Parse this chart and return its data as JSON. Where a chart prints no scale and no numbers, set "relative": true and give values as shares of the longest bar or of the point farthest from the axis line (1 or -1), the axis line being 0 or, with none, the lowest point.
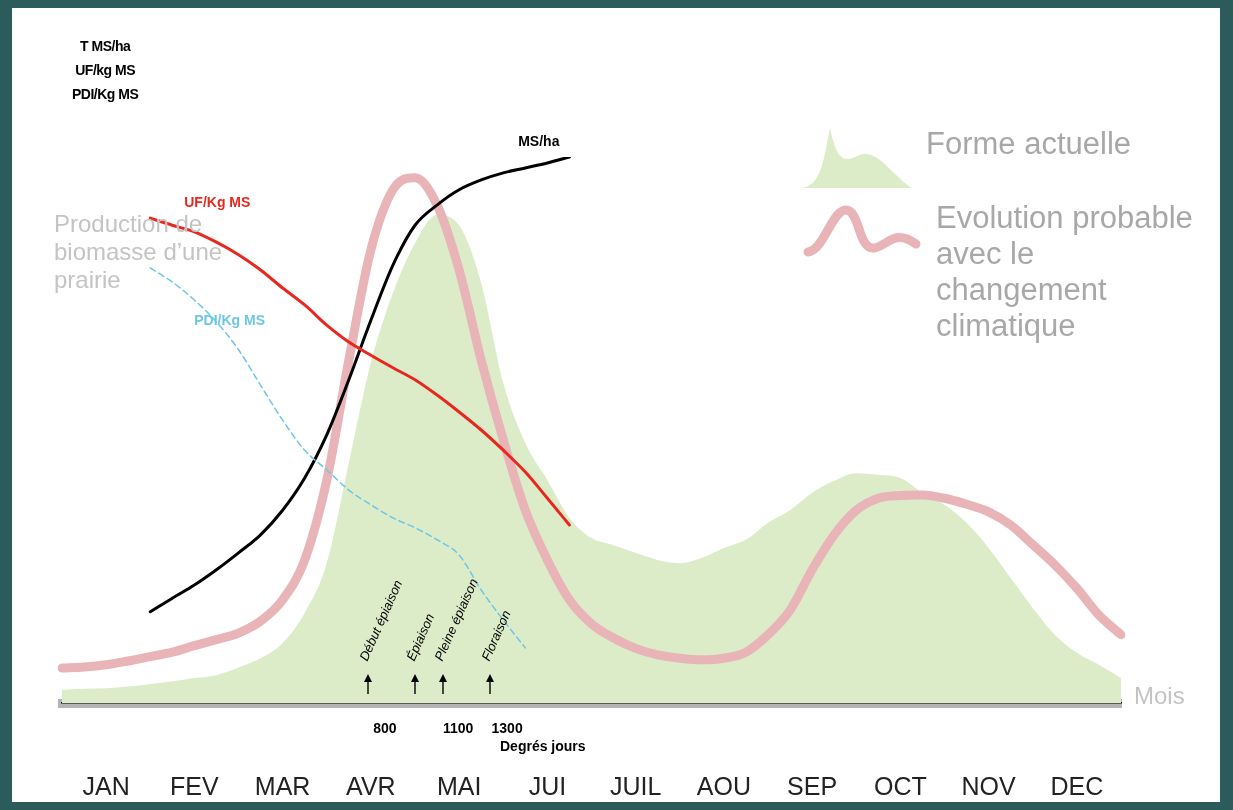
{
  "chart_data": {
    "type": "line",
    "relative": true,
    "ylabel": "T MS/ha\nUF/kg MS\nPDI/Kg MS",
    "xlabel": "Degrés jours",
    "categories": [
      null,
      null,
      "JAN",
      null,
      null,
      null,
      "FEV",
      null,
      null,
      null,
      "MAR",
      null,
      null,
      null,
      "AVR",
      null,
      null,
      null,
      "MAI",
      null,
      null,
      null,
      "JUI",
      null,
      null,
      null,
      "JUIL",
      null,
      null,
      null,
      "AOU",
      null,
      null,
      null,
      "SEP",
      null,
      null,
      null,
      "OCT",
      null,
      null,
      null,
      "NOV",
      null,
      null,
      null,
      "DEC",
      null,
      null
    ],
    "x2lim": [
      -520,
      3810
    ],
    "x2ticks": [
      800,
      1100,
      1300
    ],
    "legend": "top right",
    "series": [
      {
        "name": "Forme actuelle",
        "type": "area",
        "color": "#dcecc8",
        "values": [
          0.024,
          0.026,
          0.027,
          0.03,
          0.035,
          0.04,
          0.046,
          0.051,
          0.065,
          0.082,
          0.11,
          0.165,
          0.256,
          0.44,
          0.623,
          0.751,
          0.842,
          0.894,
          0.875,
          0.769,
          0.586,
          0.476,
          0.408,
          0.339,
          0.302,
          0.289,
          0.275,
          0.262,
          0.256,
          0.266,
          0.284,
          0.299,
          0.33,
          0.353,
          0.385,
          0.407,
          0.421,
          0.418,
          0.412,
          0.385,
          0.363,
          0.33,
          0.284,
          0.229,
          0.174,
          0.125,
          0.092,
          0.07,
          0.046
        ]
      },
      {
        "name": "Evolution probable avec le changement climatique",
        "color": "#e8b4b8",
        "values": [
          0.064,
          0.066,
          0.07,
          0.077,
          0.085,
          0.093,
          0.105,
          0.116,
          0.128,
          0.15,
          0.189,
          0.262,
          0.408,
          0.628,
          0.83,
          0.94,
          0.962,
          0.912,
          0.793,
          0.628,
          0.482,
          0.353,
          0.262,
          0.189,
          0.145,
          0.119,
          0.1,
          0.088,
          0.082,
          0.079,
          0.082,
          0.093,
          0.125,
          0.17,
          0.244,
          0.308,
          0.353,
          0.375,
          0.38,
          0.381,
          0.375,
          0.364,
          0.35,
          0.326,
          0.29,
          0.253,
          0.21,
          0.161,
          0.125
        ]
      },
      {
        "name": "MS/ha",
        "color": "#000000",
        "values": [
          null,
          null,
          null,
          null,
          0.167,
          0.192,
          0.216,
          0.244,
          0.275,
          0.308,
          0.353,
          0.412,
          0.491,
          0.592,
          0.701,
          0.802,
          0.875,
          0.912,
          0.94,
          0.958,
          0.971,
          0.98,
          0.989,
          1,
          null,
          null,
          null,
          null,
          null,
          null,
          null,
          null,
          null,
          null,
          null,
          null,
          null,
          null,
          null,
          null,
          null,
          null,
          null,
          null,
          null,
          null,
          null,
          null,
          null
        ]
      },
      {
        "name": "UF/Kg MS",
        "color": "#e8281e",
        "values": [
          null,
          null,
          null,
          null,
          0.888,
          0.875,
          0.863,
          0.844,
          0.821,
          0.793,
          0.76,
          0.729,
          0.692,
          0.661,
          0.637,
          0.614,
          0.592,
          0.564,
          0.533,
          0.5,
          0.463,
          0.423,
          0.375,
          0.326,
          null,
          null,
          null,
          null,
          null,
          null,
          null,
          null,
          null,
          null,
          null,
          null,
          null,
          null,
          null,
          null,
          null,
          null,
          null,
          null,
          null,
          null,
          null,
          null,
          null
        ]
      },
      {
        "name": "PDI/Kg MS",
        "line_style": "dashed",
        "color": "#6ec6e6",
        "values": [
          null,
          null,
          null,
          null,
          0.797,
          0.771,
          0.738,
          0.698,
          0.647,
          0.582,
          0.518,
          0.463,
          0.427,
          0.39,
          0.363,
          0.339,
          0.321,
          0.299,
          0.271,
          0.207,
          0.152,
          0.101,
          null,
          null,
          null,
          null,
          null,
          null,
          null,
          null,
          null,
          null,
          null,
          null,
          null,
          null,
          null,
          null,
          null,
          null,
          null,
          null,
          null,
          null,
          null,
          null,
          null,
          null,
          null
        ]
      }
    ],
    "annotations": [
      "Production de biomasse d’une prairie",
      "Mois",
      "Début épiaison",
      "Épiaison",
      "Pleine épiaison",
      "Floraison"
    ]
  }
}
